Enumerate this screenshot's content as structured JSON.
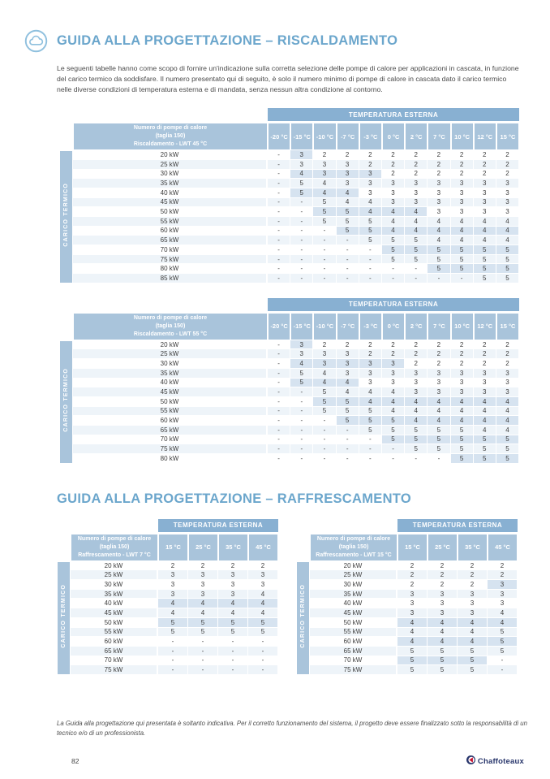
{
  "page": {
    "heading1": "GUIDA ALLA PROGETTAZIONE – RISCALDAMENTO",
    "heading2": "GUIDA ALLA PROGETTAZIONE – RAFFRESCAMENTO",
    "intro": "Le seguenti tabelle hanno come scopo di fornire un'indicazione sulla corretta selezione delle pompe di calore per applicazioni in cascata, in funzione del carico termico da soddisfare. Il numero presentato qui di seguito, è solo il numero minimo di pompe di calore in cascata dato il carico termico nelle diverse condizioni di temperatura esterna e di mandata, senza nessun altra condizione al contorno.",
    "footer_note": "La Guida alla progettazione qui presentata è soltanto indicativa. Per il corretto funzionamento del sistema, il progetto deve essere finalizzato sotto la responsabilità di un tecnico e/o di un professionista.",
    "page_number": "82",
    "logo_text": "Chaffoteaux",
    "icons": {
      "heading_icon": "cloud-icon",
      "logo_icon": "chaffoteaux-mark-icon"
    }
  },
  "colors": {
    "heading_blue": "#6ba6cc",
    "band_blue": "#88b0d2",
    "header_cell_blue": "#a9c4db",
    "stripe_blue": "#eef4f9",
    "highlight_blue": "#d6e3f0",
    "logo_navy": "#27356b",
    "logo_red": "#c8102e"
  },
  "tables": [
    {
      "band": "TEMPERATURA ESTERNA",
      "side_label": "CARICO TERMICO",
      "title_lines": [
        "Numero di pompe di calore",
        "(taglia 150)",
        "Riscaldamento - LWT 45 °C"
      ],
      "columns": [
        "-20 °C",
        "-15 °C",
        "-10 °C",
        "-7 °C",
        "-3 °C",
        "0 °C",
        "2 °C",
        "7 °C",
        "10 °C",
        "12 °C",
        "15 °C"
      ],
      "rows": [
        {
          "label": "20 kW",
          "values": [
            "-",
            3,
            2,
            2,
            2,
            2,
            2,
            2,
            2,
            2,
            2
          ]
        },
        {
          "label": "25 kW",
          "values": [
            "-",
            3,
            3,
            3,
            2,
            2,
            2,
            2,
            2,
            2,
            2
          ]
        },
        {
          "label": "30 kW",
          "values": [
            "-",
            4,
            3,
            3,
            3,
            2,
            2,
            2,
            2,
            2,
            2
          ]
        },
        {
          "label": "35 kW",
          "values": [
            "-",
            5,
            4,
            3,
            3,
            3,
            3,
            3,
            3,
            3,
            3
          ]
        },
        {
          "label": "40 kW",
          "values": [
            "-",
            5,
            4,
            4,
            3,
            3,
            3,
            3,
            3,
            3,
            3
          ]
        },
        {
          "label": "45 kW",
          "values": [
            "-",
            "-",
            5,
            4,
            4,
            3,
            3,
            3,
            3,
            3,
            3
          ]
        },
        {
          "label": "50 kW",
          "values": [
            "-",
            "-",
            5,
            5,
            4,
            4,
            4,
            3,
            3,
            3,
            3
          ]
        },
        {
          "label": "55 kW",
          "values": [
            "-",
            "-",
            5,
            5,
            5,
            4,
            4,
            4,
            4,
            4,
            4
          ]
        },
        {
          "label": "60 kW",
          "values": [
            "-",
            "-",
            "-",
            5,
            5,
            4,
            4,
            4,
            4,
            4,
            4
          ]
        },
        {
          "label": "65 kW",
          "values": [
            "-",
            "-",
            "-",
            "-",
            5,
            5,
            5,
            4,
            4,
            4,
            4
          ]
        },
        {
          "label": "70 kW",
          "values": [
            "-",
            "-",
            "-",
            "-",
            "-",
            5,
            5,
            5,
            5,
            5,
            5
          ]
        },
        {
          "label": "75 kW",
          "values": [
            "-",
            "-",
            "-",
            "-",
            "-",
            5,
            5,
            5,
            5,
            5,
            5
          ]
        },
        {
          "label": "80 kW",
          "values": [
            "-",
            "-",
            "-",
            "-",
            "-",
            "-",
            "-",
            5,
            5,
            5,
            5
          ]
        },
        {
          "label": "85 kW",
          "values": [
            "-",
            "-",
            "-",
            "-",
            "-",
            "-",
            "-",
            "-",
            "-",
            5,
            5
          ]
        }
      ]
    },
    {
      "band": "TEMPERATURA ESTERNA",
      "side_label": "CARICO TERMICO",
      "title_lines": [
        "Numero di pompe di calore",
        "(taglia 150)",
        "Riscaldamento - LWT 55 °C"
      ],
      "columns": [
        "-20 °C",
        "-15 °C",
        "-10 °C",
        "-7 °C",
        "-3 °C",
        "0 °C",
        "2 °C",
        "7 °C",
        "10 °C",
        "12 °C",
        "15 °C"
      ],
      "rows": [
        {
          "label": "20 kW",
          "values": [
            "-",
            3,
            2,
            2,
            2,
            2,
            2,
            2,
            2,
            2,
            2
          ]
        },
        {
          "label": "25 kW",
          "values": [
            "-",
            3,
            3,
            3,
            2,
            2,
            2,
            2,
            2,
            2,
            2
          ]
        },
        {
          "label": "30 kW",
          "values": [
            "-",
            4,
            3,
            3,
            3,
            3,
            2,
            2,
            2,
            2,
            2
          ]
        },
        {
          "label": "35 kW",
          "values": [
            "-",
            5,
            4,
            3,
            3,
            3,
            3,
            3,
            3,
            3,
            3
          ]
        },
        {
          "label": "40 kW",
          "values": [
            "-",
            5,
            4,
            4,
            3,
            3,
            3,
            3,
            3,
            3,
            3
          ]
        },
        {
          "label": "45 kW",
          "values": [
            "-",
            "-",
            5,
            4,
            4,
            4,
            3,
            3,
            3,
            3,
            3
          ]
        },
        {
          "label": "50 kW",
          "values": [
            "-",
            "-",
            5,
            5,
            4,
            4,
            4,
            4,
            4,
            4,
            4
          ]
        },
        {
          "label": "55 kW",
          "values": [
            "-",
            "-",
            5,
            5,
            5,
            4,
            4,
            4,
            4,
            4,
            4
          ]
        },
        {
          "label": "60 kW",
          "values": [
            "-",
            "-",
            "-",
            5,
            5,
            5,
            4,
            4,
            4,
            4,
            4
          ]
        },
        {
          "label": "65 kW",
          "values": [
            "-",
            "-",
            "-",
            "-",
            5,
            5,
            5,
            5,
            5,
            4,
            4
          ]
        },
        {
          "label": "70 kW",
          "values": [
            "-",
            "-",
            "-",
            "-",
            "-",
            5,
            5,
            5,
            5,
            5,
            5
          ]
        },
        {
          "label": "75 kW",
          "values": [
            "-",
            "-",
            "-",
            "-",
            "-",
            "-",
            5,
            5,
            5,
            5,
            5
          ]
        },
        {
          "label": "80 kW",
          "values": [
            "-",
            "-",
            "-",
            "-",
            "-",
            "-",
            "-",
            "-",
            5,
            5,
            5
          ]
        }
      ]
    },
    {
      "band": "TEMPERATURA ESTERNA",
      "side_label": "CARICO TERMICO",
      "title_lines": [
        "Numero di pompe di calore",
        "(taglia 150)",
        "Raffrescamento - LWT 7 °C"
      ],
      "columns": [
        "15 °C",
        "25 °C",
        "35 °C",
        "45 °C"
      ],
      "rows": [
        {
          "label": "20 kW",
          "values": [
            2,
            2,
            2,
            2
          ]
        },
        {
          "label": "25 kW",
          "values": [
            3,
            3,
            3,
            3
          ]
        },
        {
          "label": "30 kW",
          "values": [
            3,
            3,
            3,
            3
          ]
        },
        {
          "label": "35 kW",
          "values": [
            3,
            3,
            3,
            4
          ]
        },
        {
          "label": "40 kW",
          "values": [
            4,
            4,
            4,
            4
          ]
        },
        {
          "label": "45 kW",
          "values": [
            4,
            4,
            4,
            4
          ]
        },
        {
          "label": "50 kW",
          "values": [
            5,
            5,
            5,
            5
          ]
        },
        {
          "label": "55 kW",
          "values": [
            5,
            5,
            5,
            5
          ]
        },
        {
          "label": "60 kW",
          "values": [
            "-",
            "-",
            "-",
            "-"
          ]
        },
        {
          "label": "65 kW",
          "values": [
            "-",
            "-",
            "-",
            "-"
          ]
        },
        {
          "label": "70 kW",
          "values": [
            "-",
            "-",
            "-",
            "-"
          ]
        },
        {
          "label": "75 kW",
          "values": [
            "-",
            "-",
            "-",
            "-"
          ]
        }
      ]
    },
    {
      "band": "TEMPERATURA ESTERNA",
      "side_label": "CARICO TERMICO",
      "title_lines": [
        "Numero di pompe di calore",
        "(taglia 150)",
        "Raffrescamento - LWT 15 °C"
      ],
      "columns": [
        "15 °C",
        "25 °C",
        "35 °C",
        "45 °C"
      ],
      "rows": [
        {
          "label": "20 kW",
          "values": [
            2,
            2,
            2,
            2
          ]
        },
        {
          "label": "25 kW",
          "values": [
            2,
            2,
            2,
            2
          ]
        },
        {
          "label": "30 kW",
          "values": [
            2,
            2,
            2,
            3
          ]
        },
        {
          "label": "35 kW",
          "values": [
            3,
            3,
            3,
            3
          ]
        },
        {
          "label": "40 kW",
          "values": [
            3,
            3,
            3,
            3
          ]
        },
        {
          "label": "45 kW",
          "values": [
            3,
            3,
            3,
            4
          ]
        },
        {
          "label": "50 kW",
          "values": [
            4,
            4,
            4,
            4
          ]
        },
        {
          "label": "55 kW",
          "values": [
            4,
            4,
            4,
            5
          ]
        },
        {
          "label": "60 kW",
          "values": [
            4,
            4,
            4,
            5
          ]
        },
        {
          "label": "65 kW",
          "values": [
            5,
            5,
            5,
            5
          ]
        },
        {
          "label": "70 kW",
          "values": [
            5,
            5,
            5,
            "-"
          ]
        },
        {
          "label": "75 kW",
          "values": [
            5,
            5,
            5,
            "-"
          ]
        }
      ]
    }
  ]
}
